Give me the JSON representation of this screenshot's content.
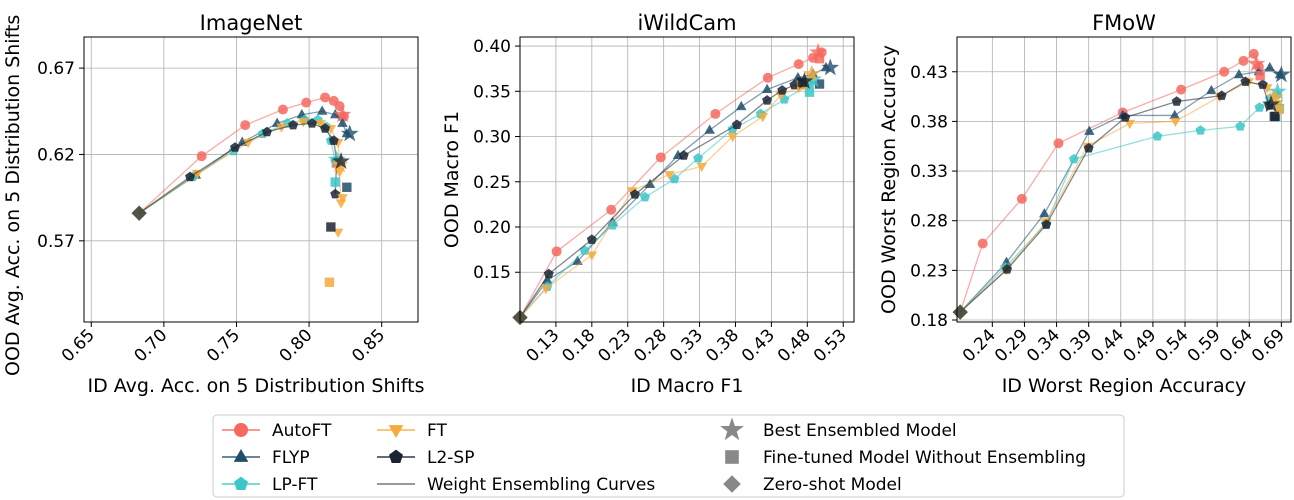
{
  "chart_data": [
    {
      "type": "line",
      "title": "ImageNet",
      "xlabel": "ID Avg. Acc. on 5 Distribution Shifts",
      "ylabel": "OOD Avg. Acc. on 5 Distribution Shifts",
      "xlim": [
        0.645,
        0.875
      ],
      "ylim": [
        0.523,
        0.688
      ],
      "x_ticks": [
        "0.65",
        "0.70",
        "0.75",
        "0.80",
        "0.85"
      ],
      "y_ticks": [
        "0.57",
        "0.62",
        "0.67"
      ],
      "grid": true,
      "series": [
        {
          "name": "AutoFT",
          "x": [
            0.683,
            0.726,
            0.756,
            0.782,
            0.798,
            0.811,
            0.817,
            0.821,
            0.824
          ],
          "y": [
            0.586,
            0.619,
            0.637,
            0.646,
            0.65,
            0.653,
            0.651,
            0.648,
            0.642
          ]
        },
        {
          "name": "FLYP",
          "x": [
            0.683,
            0.722,
            0.754,
            0.778,
            0.795,
            0.809,
            0.818,
            0.823,
            0.826
          ],
          "y": [
            0.586,
            0.608,
            0.627,
            0.638,
            0.643,
            0.645,
            0.643,
            0.638,
            0.632
          ]
        },
        {
          "name": "LP-FT",
          "x": [
            0.683,
            0.72,
            0.748,
            0.768,
            0.785,
            0.797,
            0.806,
            0.812,
            0.815,
            0.818
          ],
          "y": [
            0.586,
            0.607,
            0.622,
            0.632,
            0.638,
            0.64,
            0.64,
            0.636,
            0.628,
            0.616
          ]
        },
        {
          "name": "FT",
          "x": [
            0.683,
            0.723,
            0.758,
            0.781,
            0.796,
            0.808,
            0.815,
            0.82,
            0.821,
            0.822
          ],
          "y": [
            0.586,
            0.609,
            0.627,
            0.636,
            0.639,
            0.638,
            0.635,
            0.627,
            0.61,
            0.592
          ]
        },
        {
          "name": "L2-SP",
          "x": [
            0.683,
            0.718,
            0.749,
            0.771,
            0.789,
            0.802,
            0.811,
            0.817,
            0.819,
            0.818
          ],
          "y": [
            0.586,
            0.607,
            0.624,
            0.633,
            0.637,
            0.638,
            0.635,
            0.628,
            0.616,
            0.597
          ]
        }
      ],
      "best": [
        {
          "name": "AutoFT",
          "x": 0.823,
          "y": 0.643
        },
        {
          "name": "FLYP",
          "x": 0.828,
          "y": 0.632
        },
        {
          "name": "LP-FT",
          "x": 0.819,
          "y": 0.617
        },
        {
          "name": "FT",
          "x": 0.821,
          "y": 0.614
        },
        {
          "name": "L2-SP",
          "x": 0.822,
          "y": 0.616
        }
      ],
      "finetuned": [
        {
          "name": "AutoFT",
          "x": 0.819,
          "y": 0.615
        },
        {
          "name": "FLYP",
          "x": 0.826,
          "y": 0.601
        },
        {
          "name": "LP-FT",
          "x": 0.818,
          "y": 0.604
        },
        {
          "name": "FT",
          "x": 0.814,
          "y": 0.546
        },
        {
          "name": "L2-SP",
          "x": 0.815,
          "y": 0.578
        }
      ],
      "extra_points": [
        {
          "name": "FT",
          "x": 0.82,
          "y": 0.575
        },
        {
          "name": "FT",
          "x": 0.823,
          "y": 0.595
        }
      ],
      "zero_shot": {
        "x": 0.683,
        "y": 0.586
      }
    },
    {
      "type": "line",
      "title": "iWildCam",
      "xlabel": "ID Macro F1",
      "ylabel": "OOD Macro F1",
      "xlim": [
        0.08,
        0.545
      ],
      "ylim": [
        0.095,
        0.41
      ],
      "x_ticks": [
        "0.13",
        "0.18",
        "0.23",
        "0.28",
        "0.33",
        "0.38",
        "0.43",
        "0.48",
        "0.53"
      ],
      "y_ticks": [
        "0.15",
        "0.20",
        "0.25",
        "0.30",
        "0.35",
        "0.40"
      ],
      "grid": true,
      "series": [
        {
          "name": "AutoFT",
          "x": [
            0.08,
            0.131,
            0.207,
            0.276,
            0.352,
            0.425,
            0.468,
            0.488,
            0.5
          ],
          "y": [
            0.1,
            0.173,
            0.219,
            0.277,
            0.325,
            0.365,
            0.38,
            0.387,
            0.393
          ]
        },
        {
          "name": "FLYP",
          "x": [
            0.08,
            0.118,
            0.16,
            0.209,
            0.261,
            0.3,
            0.344,
            0.388,
            0.424,
            0.467,
            0.488,
            0.506
          ],
          "y": [
            0.1,
            0.141,
            0.162,
            0.205,
            0.247,
            0.279,
            0.307,
            0.333,
            0.352,
            0.365,
            0.369,
            0.376
          ]
        },
        {
          "name": "LP-FT",
          "x": [
            0.08,
            0.118,
            0.17,
            0.209,
            0.254,
            0.295,
            0.328,
            0.376,
            0.415,
            0.448,
            0.484
          ],
          "y": [
            0.1,
            0.134,
            0.174,
            0.202,
            0.233,
            0.253,
            0.276,
            0.308,
            0.325,
            0.341,
            0.358
          ]
        },
        {
          "name": "FT",
          "x": [
            0.08,
            0.116,
            0.18,
            0.236,
            0.288,
            0.333,
            0.376,
            0.418,
            0.443,
            0.468,
            0.479
          ],
          "y": [
            0.1,
            0.132,
            0.169,
            0.24,
            0.258,
            0.267,
            0.3,
            0.322,
            0.346,
            0.354,
            0.36
          ]
        },
        {
          "name": "L2-SP",
          "x": [
            0.08,
            0.12,
            0.18,
            0.24,
            0.308,
            0.382,
            0.424,
            0.445,
            0.462,
            0.473
          ],
          "y": [
            0.1,
            0.148,
            0.186,
            0.236,
            0.279,
            0.313,
            0.34,
            0.351,
            0.357,
            0.358
          ]
        }
      ],
      "best": [
        {
          "name": "AutoFT",
          "x": 0.495,
          "y": 0.393
        },
        {
          "name": "FLYP",
          "x": 0.512,
          "y": 0.376
        },
        {
          "name": "LP-FT",
          "x": 0.488,
          "y": 0.363
        },
        {
          "name": "FT",
          "x": 0.486,
          "y": 0.369
        },
        {
          "name": "L2-SP",
          "x": 0.476,
          "y": 0.361
        }
      ],
      "finetuned": [
        {
          "name": "AutoFT",
          "x": 0.497,
          "y": 0.386
        },
        {
          "name": "FLYP",
          "x": 0.497,
          "y": 0.358
        },
        {
          "name": "LP-FT",
          "x": 0.483,
          "y": 0.349
        },
        {
          "name": "FT",
          "x": 0.472,
          "y": 0.357
        },
        {
          "name": "L2-SP",
          "x": 0.473,
          "y": 0.36
        }
      ],
      "extra_points": [],
      "zero_shot": {
        "x": 0.08,
        "y": 0.1
      }
    },
    {
      "type": "line",
      "title": "FMoW",
      "xlabel": "ID Worst Region Accuracy",
      "ylabel": "OOD Worst Region Accuracy",
      "xlim": [
        0.185,
        0.705
      ],
      "ylim": [
        0.178,
        0.465
      ],
      "x_ticks": [
        "0.24",
        "0.29",
        "0.34",
        "0.39",
        "0.44",
        "0.49",
        "0.54",
        "0.59",
        "0.64",
        "0.69"
      ],
      "y_ticks": [
        "0.18",
        "0.23",
        "0.28",
        "0.33",
        "0.38",
        "0.43"
      ],
      "grid": true,
      "series": [
        {
          "name": "AutoFT",
          "x": [
            0.19,
            0.225,
            0.286,
            0.343,
            0.443,
            0.534,
            0.601,
            0.631,
            0.647,
            0.655
          ],
          "y": [
            0.188,
            0.257,
            0.302,
            0.358,
            0.389,
            0.412,
            0.43,
            0.441,
            0.448,
            0.435
          ]
        },
        {
          "name": "FLYP",
          "x": [
            0.19,
            0.262,
            0.321,
            0.391,
            0.443,
            0.524,
            0.581,
            0.624,
            0.655,
            0.672,
            0.688
          ],
          "y": [
            0.188,
            0.238,
            0.287,
            0.37,
            0.386,
            0.386,
            0.411,
            0.427,
            0.43,
            0.434,
            0.427
          ]
        },
        {
          "name": "LP-FT",
          "x": [
            0.19,
            0.26,
            0.324,
            0.367,
            0.497,
            0.564,
            0.626,
            0.656,
            0.672,
            0.683
          ],
          "y": [
            0.188,
            0.233,
            0.277,
            0.342,
            0.365,
            0.371,
            0.375,
            0.394,
            0.403,
            0.407
          ]
        },
        {
          "name": "FT",
          "x": [
            0.19,
            0.262,
            0.324,
            0.388,
            0.454,
            0.525,
            0.594,
            0.639,
            0.668,
            0.685
          ],
          "y": [
            0.188,
            0.231,
            0.279,
            0.355,
            0.378,
            0.38,
            0.405,
            0.42,
            0.414,
            0.398
          ]
        },
        {
          "name": "L2-SP",
          "x": [
            0.19,
            0.263,
            0.324,
            0.39,
            0.447,
            0.527,
            0.597,
            0.634,
            0.661,
            0.671
          ],
          "y": [
            0.188,
            0.231,
            0.276,
            0.353,
            0.384,
            0.4,
            0.406,
            0.42,
            0.417,
            0.396
          ]
        }
      ],
      "best": [
        {
          "name": "AutoFT",
          "x": 0.651,
          "y": 0.438
        },
        {
          "name": "FLYP",
          "x": 0.69,
          "y": 0.427
        },
        {
          "name": "LP-FT",
          "x": 0.684,
          "y": 0.41
        },
        {
          "name": "FT",
          "x": 0.68,
          "y": 0.404
        },
        {
          "name": "L2-SP",
          "x": 0.674,
          "y": 0.397
        }
      ],
      "finetuned": [
        {
          "name": "AutoFT",
          "x": 0.657,
          "y": 0.426
        },
        {
          "name": "FLYP",
          "x": 0.681,
          "y": 0.385
        },
        {
          "name": "LP-FT",
          "x": 0.687,
          "y": 0.393
        },
        {
          "name": "FT",
          "x": 0.686,
          "y": 0.392
        },
        {
          "name": "L2-SP",
          "x": 0.679,
          "y": 0.385
        }
      ],
      "extra_points": [],
      "zero_shot": {
        "x": 0.19,
        "y": 0.188
      }
    }
  ],
  "legend": {
    "entries": [
      {
        "label": "AutoFT",
        "color": "#f4685f",
        "marker": "circle"
      },
      {
        "label": "FLYP",
        "color": "#1f4e6b",
        "marker": "triangle-up"
      },
      {
        "label": "LP-FT",
        "color": "#3cc6c9",
        "marker": "pentagon"
      },
      {
        "label": "FT",
        "color": "#f7a93a",
        "marker": "triangle-down"
      },
      {
        "label": "L2-SP",
        "color": "#1a2533",
        "marker": "pentagon"
      },
      {
        "label": "Weight Ensembling Curves",
        "color": "#777777",
        "marker": "line"
      },
      {
        "label": "Best Ensembled Model",
        "color": "#888888",
        "marker": "star"
      },
      {
        "label": "Fine-tuned Model Without Ensembling",
        "color": "#888888",
        "marker": "square"
      },
      {
        "label": "Zero-shot Model",
        "color": "#888888",
        "marker": "diamond"
      }
    ]
  }
}
